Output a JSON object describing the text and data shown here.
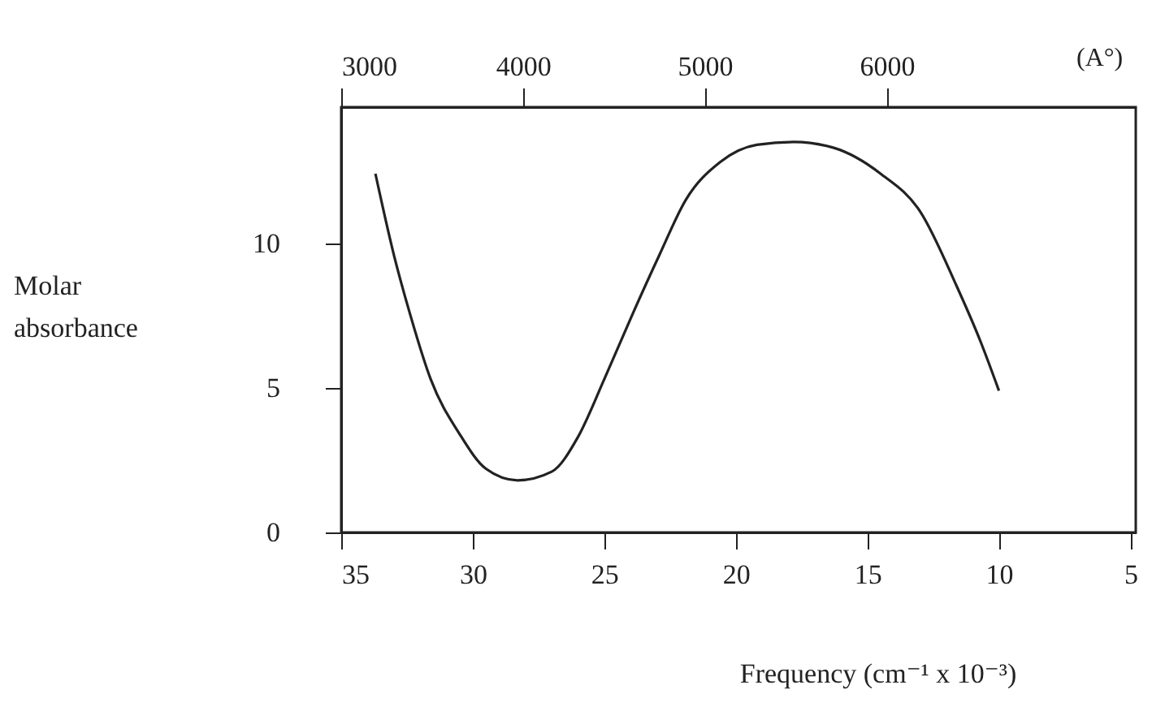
{
  "chart_data": {
    "type": "line",
    "xlabel": "Frequency (cm⁻¹ x 10⁻³)",
    "ylabel": "Molar absorbance",
    "x2label": "(A°)",
    "x": [
      33.7,
      33.0,
      32.4,
      31.6,
      30.5,
      29.5,
      28.3,
      27.0,
      26.0,
      25.0,
      23.9,
      22.9,
      21.9,
      20.6,
      19.2,
      17.8,
      16.3,
      14.5,
      13.0,
      11.6,
      10.7,
      10.0
    ],
    "values": [
      12.4,
      9.6,
      7.6,
      5.3,
      3.4,
      2.2,
      1.8,
      2.1,
      3.3,
      5.3,
      7.6,
      9.6,
      11.5,
      12.8,
      13.4,
      13.5,
      13.3,
      12.4,
      11.1,
      8.5,
      6.6,
      4.9
    ],
    "color": "#222222",
    "xlim": [
      35,
      4.8
    ],
    "xticks": [
      35,
      30,
      25,
      20,
      15,
      10,
      5
    ],
    "x2lim": [
      3000,
      7370
    ],
    "x2ticks": [
      3000,
      4000,
      5000,
      6000
    ],
    "ylim": [
      0,
      14.7
    ],
    "yticks": [
      0,
      5,
      10
    ]
  }
}
